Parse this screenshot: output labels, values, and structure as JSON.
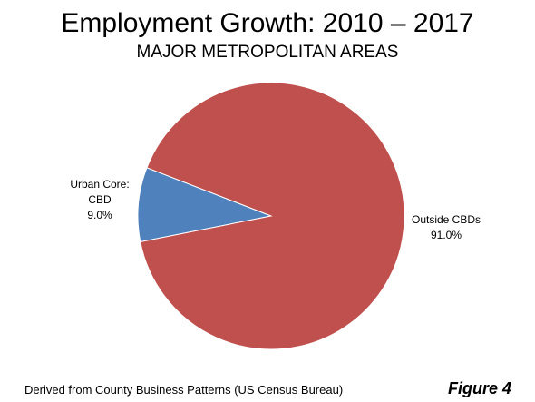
{
  "colors": {
    "urban_core": "#4f81bd",
    "outside": "#c0504d",
    "background": "#ffffff"
  },
  "chart_data": {
    "type": "pie",
    "title": "Employment Growth: 2010 – 2017",
    "subtitle": "MAJOR METROPOLITAN AREAS",
    "slices": [
      {
        "label_lines": [
          "Urban Core:",
          "CBD"
        ],
        "value": 9.0,
        "value_text": "9.0%",
        "color": "#4f81bd"
      },
      {
        "label_lines": [
          "Outside CBDs"
        ],
        "value": 91.0,
        "value_text": "91.0%",
        "color": "#c0504d"
      }
    ],
    "legend": "none"
  },
  "footer": {
    "source": "Derived from County Business Patterns (US Census Bureau)",
    "figure_label": "Figure 4"
  }
}
